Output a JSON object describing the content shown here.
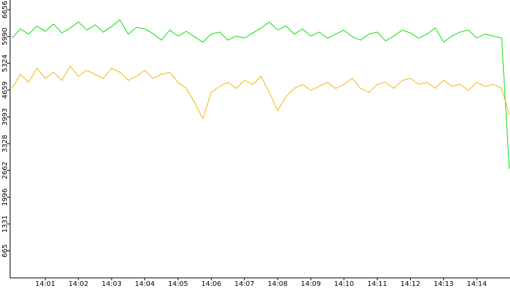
{
  "chart_data": {
    "type": "line",
    "x": [
      0,
      0.25,
      0.5,
      0.75,
      1,
      1.25,
      1.5,
      1.75,
      2,
      2.25,
      2.5,
      2.75,
      3,
      3.25,
      3.5,
      3.75,
      4,
      4.25,
      4.5,
      4.75,
      5,
      5.25,
      5.5,
      5.75,
      6,
      6.25,
      6.5,
      6.75,
      7,
      7.25,
      7.5,
      7.75,
      8,
      8.25,
      8.5,
      8.75,
      9,
      9.25,
      9.5,
      9.75,
      10,
      10.25,
      10.5,
      10.75,
      11,
      11.25,
      11.5,
      11.75,
      12,
      12.25,
      12.5,
      12.75,
      13,
      13.25,
      13.5,
      13.75,
      14,
      14.25,
      14.5,
      14.75,
      14.98
    ],
    "series": [
      {
        "color": "#00dd00",
        "values": [
          5950,
          6180,
          6050,
          6250,
          6120,
          6300,
          6080,
          6200,
          6350,
          6150,
          6280,
          6100,
          6240,
          6400,
          6050,
          6220,
          6180,
          6060,
          5900,
          6150,
          6000,
          6120,
          5980,
          5850,
          6050,
          6100,
          5900,
          6000,
          5950,
          6080,
          6200,
          6350,
          6150,
          6250,
          6050,
          6180,
          6000,
          6100,
          5950,
          6050,
          6150,
          5980,
          5900,
          6050,
          6100,
          5880,
          6000,
          6150,
          6080,
          5950,
          6050,
          6200,
          5850,
          6000,
          6100,
          6150,
          5950,
          6050,
          6000,
          5950,
          2700
        ]
      },
      {
        "color": "#f0b400",
        "values": [
          4700,
          5050,
          4850,
          5200,
          4950,
          5100,
          4900,
          5250,
          5000,
          5150,
          5050,
          4950,
          5200,
          5100,
          4900,
          5000,
          5150,
          4950,
          5050,
          5100,
          4850,
          4700,
          4350,
          3950,
          4600,
          4750,
          4850,
          4700,
          4900,
          4800,
          5000,
          4600,
          4150,
          4500,
          4700,
          4800,
          4650,
          4750,
          4850,
          4700,
          4800,
          4950,
          4700,
          4600,
          4800,
          4850,
          4700,
          4900,
          4950,
          4800,
          4850,
          4700,
          4900,
          4750,
          4800,
          4650,
          4850,
          4750,
          4800,
          4700,
          4050
        ]
      }
    ],
    "xlim": [
      -0.07,
      15.0
    ],
    "xticks": [
      {
        "value": 1,
        "label": "14:01"
      },
      {
        "value": 2,
        "label": "14:02"
      },
      {
        "value": 3,
        "label": "14:03"
      },
      {
        "value": 4,
        "label": "14:04"
      },
      {
        "value": 5,
        "label": "14:05"
      },
      {
        "value": 6,
        "label": "14:06"
      },
      {
        "value": 7,
        "label": "14:07"
      },
      {
        "value": 8,
        "label": "14:08"
      },
      {
        "value": 9,
        "label": "14:09"
      },
      {
        "value": 10,
        "label": "14:10"
      },
      {
        "value": 11,
        "label": "14:11"
      },
      {
        "value": 12,
        "label": "14:12"
      },
      {
        "value": 13,
        "label": "14:13"
      },
      {
        "value": 14,
        "label": "14:14"
      }
    ],
    "ylim": [
      0,
      6656
    ],
    "yticks": [
      665,
      1331,
      1996,
      2662,
      3328,
      3993,
      4659,
      5324,
      5990,
      6656
    ]
  }
}
